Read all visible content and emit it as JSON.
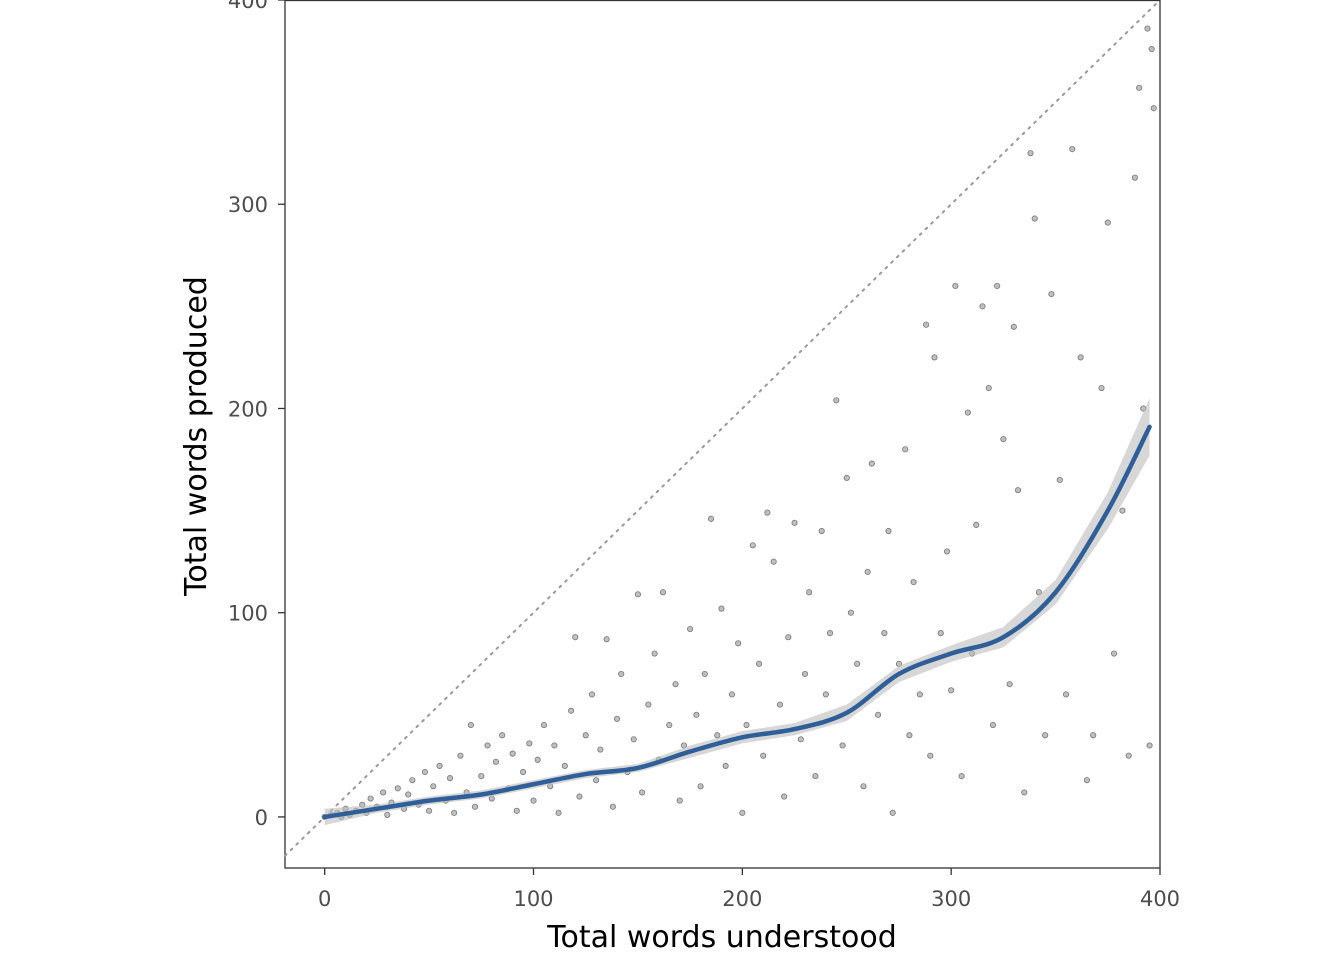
{
  "chart_data": {
    "type": "scatter",
    "title": "",
    "xlabel": "Total words understood",
    "ylabel": "Total words produced",
    "xlim": [
      -19,
      400
    ],
    "ylim": [
      -25,
      400
    ],
    "x_ticks": [
      0,
      100,
      200,
      300,
      400
    ],
    "y_ticks": [
      0,
      100,
      200,
      300,
      400
    ],
    "x_tick_labels": [
      "0",
      "100",
      "200",
      "300",
      "400"
    ],
    "y_tick_labels": [
      "0",
      "100",
      "200",
      "300",
      "400"
    ],
    "grid": false,
    "legend": "none",
    "reference_line": {
      "style": "dotted",
      "slope": 1,
      "intercept": 0
    },
    "colors": {
      "points": "#000000",
      "smooth_line": "#2f5f98",
      "confidence_band": "#bdbdbd",
      "reference_line": "#999999",
      "panel_border": "#333333"
    },
    "sampled_points": [
      [
        0,
        0
      ],
      [
        3,
        1
      ],
      [
        6,
        2
      ],
      [
        8,
        0
      ],
      [
        10,
        4
      ],
      [
        12,
        1
      ],
      [
        15,
        3
      ],
      [
        18,
        6
      ],
      [
        20,
        2
      ],
      [
        22,
        9
      ],
      [
        25,
        5
      ],
      [
        28,
        12
      ],
      [
        30,
        1
      ],
      [
        32,
        7
      ],
      [
        35,
        14
      ],
      [
        38,
        4
      ],
      [
        40,
        11
      ],
      [
        42,
        18
      ],
      [
        45,
        6
      ],
      [
        48,
        22
      ],
      [
        50,
        3
      ],
      [
        52,
        15
      ],
      [
        55,
        25
      ],
      [
        58,
        8
      ],
      [
        60,
        19
      ],
      [
        62,
        2
      ],
      [
        65,
        30
      ],
      [
        68,
        12
      ],
      [
        70,
        45
      ],
      [
        72,
        5
      ],
      [
        75,
        20
      ],
      [
        78,
        35
      ],
      [
        80,
        9
      ],
      [
        82,
        27
      ],
      [
        85,
        40
      ],
      [
        88,
        14
      ],
      [
        90,
        31
      ],
      [
        92,
        3
      ],
      [
        95,
        22
      ],
      [
        98,
        36
      ],
      [
        100,
        8
      ],
      [
        102,
        28
      ],
      [
        105,
        45
      ],
      [
        108,
        15
      ],
      [
        110,
        35
      ],
      [
        112,
        2
      ],
      [
        115,
        25
      ],
      [
        118,
        52
      ],
      [
        120,
        88
      ],
      [
        122,
        10
      ],
      [
        125,
        40
      ],
      [
        128,
        60
      ],
      [
        130,
        18
      ],
      [
        132,
        33
      ],
      [
        135,
        87
      ],
      [
        138,
        5
      ],
      [
        140,
        48
      ],
      [
        142,
        70
      ],
      [
        145,
        22
      ],
      [
        148,
        38
      ],
      [
        150,
        109
      ],
      [
        152,
        12
      ],
      [
        155,
        55
      ],
      [
        158,
        80
      ],
      [
        160,
        28
      ],
      [
        162,
        110
      ],
      [
        165,
        45
      ],
      [
        168,
        65
      ],
      [
        170,
        8
      ],
      [
        172,
        35
      ],
      [
        175,
        92
      ],
      [
        178,
        50
      ],
      [
        180,
        15
      ],
      [
        182,
        70
      ],
      [
        185,
        146
      ],
      [
        188,
        40
      ],
      [
        190,
        102
      ],
      [
        192,
        25
      ],
      [
        195,
        60
      ],
      [
        198,
        85
      ],
      [
        200,
        2
      ],
      [
        202,
        45
      ],
      [
        205,
        133
      ],
      [
        208,
        75
      ],
      [
        210,
        30
      ],
      [
        212,
        149
      ],
      [
        215,
        125
      ],
      [
        218,
        55
      ],
      [
        220,
        10
      ],
      [
        222,
        88
      ],
      [
        225,
        144
      ],
      [
        228,
        38
      ],
      [
        230,
        70
      ],
      [
        232,
        110
      ],
      [
        235,
        20
      ],
      [
        238,
        140
      ],
      [
        240,
        60
      ],
      [
        242,
        90
      ],
      [
        245,
        204
      ],
      [
        248,
        35
      ],
      [
        250,
        166
      ],
      [
        252,
        100
      ],
      [
        255,
        75
      ],
      [
        258,
        15
      ],
      [
        260,
        120
      ],
      [
        262,
        173
      ],
      [
        265,
        50
      ],
      [
        268,
        90
      ],
      [
        270,
        140
      ],
      [
        272,
        2
      ],
      [
        275,
        75
      ],
      [
        278,
        180
      ],
      [
        280,
        40
      ],
      [
        282,
        115
      ],
      [
        285,
        60
      ],
      [
        288,
        241
      ],
      [
        290,
        30
      ],
      [
        292,
        225
      ],
      [
        295,
        90
      ],
      [
        298,
        130
      ],
      [
        300,
        62
      ],
      [
        302,
        260
      ],
      [
        305,
        20
      ],
      [
        308,
        198
      ],
      [
        310,
        80
      ],
      [
        312,
        143
      ],
      [
        315,
        250
      ],
      [
        318,
        210
      ],
      [
        320,
        45
      ],
      [
        322,
        260
      ],
      [
        325,
        185
      ],
      [
        328,
        65
      ],
      [
        330,
        240
      ],
      [
        332,
        160
      ],
      [
        335,
        12
      ],
      [
        338,
        325
      ],
      [
        340,
        293
      ],
      [
        342,
        110
      ],
      [
        345,
        40
      ],
      [
        348,
        256
      ],
      [
        352,
        165
      ],
      [
        355,
        60
      ],
      [
        358,
        327
      ],
      [
        362,
        225
      ],
      [
        365,
        18
      ],
      [
        368,
        40
      ],
      [
        372,
        210
      ],
      [
        375,
        291
      ],
      [
        378,
        80
      ],
      [
        382,
        150
      ],
      [
        385,
        30
      ],
      [
        388,
        313
      ],
      [
        390,
        357
      ],
      [
        392,
        200
      ],
      [
        394,
        386
      ],
      [
        395,
        35
      ],
      [
        396,
        376
      ],
      [
        397,
        347
      ]
    ],
    "series": [
      {
        "type": "smooth_fit",
        "x": [
          0,
          25,
          50,
          75,
          100,
          125,
          150,
          175,
          200,
          225,
          250,
          275,
          300,
          325,
          350,
          375,
          395
        ],
        "y": [
          0,
          4,
          8,
          11,
          16,
          21,
          24,
          32,
          39,
          43,
          51,
          70,
          80,
          88,
          110,
          150,
          191
        ],
        "ci_lower": [
          -4,
          2,
          6,
          9,
          14,
          19,
          22,
          29,
          36,
          40,
          47,
          66,
          76,
          83,
          104,
          141,
          177
        ],
        "ci_upper": [
          4,
          6,
          10,
          13,
          18,
          23,
          26,
          35,
          42,
          46,
          55,
          74,
          84,
          93,
          116,
          159,
          205
        ]
      }
    ]
  }
}
